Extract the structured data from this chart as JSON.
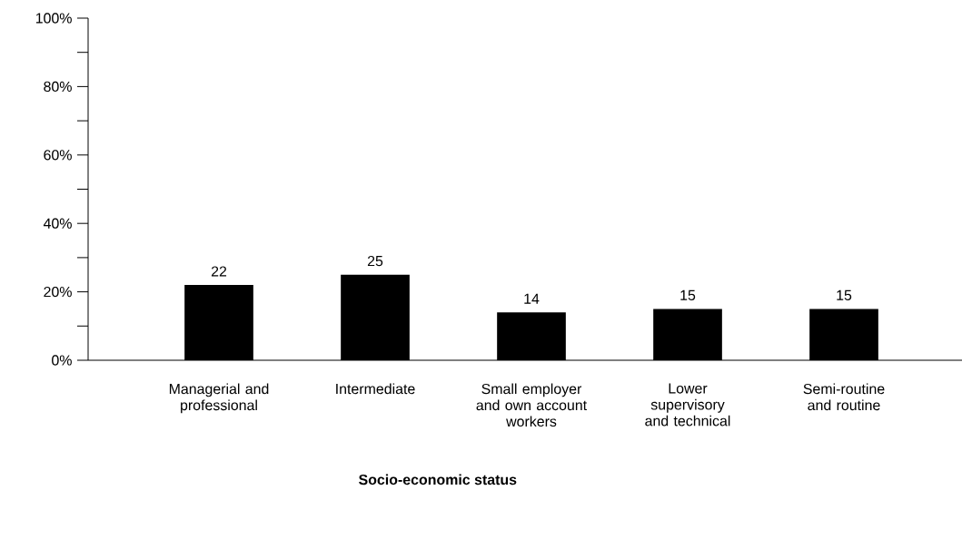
{
  "chart_data": {
    "type": "bar",
    "xlabel": "Socio-economic status",
    "categories": [
      "Managerial and professional",
      "Intermediate",
      "Small employer and own account workers",
      "Lower supervisory and technical",
      "Semi-routine and routine"
    ],
    "values": [
      22,
      25,
      14,
      15,
      15
    ],
    "color": "#000000",
    "data_labels": true,
    "grid": false,
    "ylim": [
      0,
      100
    ],
    "yticks": [
      {
        "value": 0,
        "label": "0%"
      },
      {
        "value": 10,
        "label": null
      },
      {
        "value": 20,
        "label": "20%"
      },
      {
        "value": 30,
        "label": null
      },
      {
        "value": 40,
        "label": "40%"
      },
      {
        "value": 50,
        "label": null
      },
      {
        "value": 60,
        "label": "60%"
      },
      {
        "value": 70,
        "label": null
      },
      {
        "value": 80,
        "label": "80%"
      },
      {
        "value": 90,
        "label": null
      },
      {
        "value": 100,
        "label": "100%"
      }
    ]
  }
}
